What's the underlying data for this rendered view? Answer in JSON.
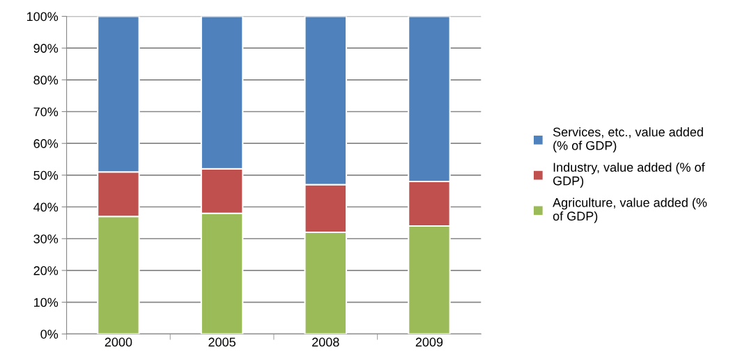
{
  "chart_data": {
    "type": "bar",
    "stacked": true,
    "categories": [
      "2000",
      "2005",
      "2008",
      "2009"
    ],
    "series": [
      {
        "name": "Agriculture, value added (% of GDP)",
        "color": "#9bbb59",
        "values": [
          37,
          38,
          32,
          34
        ]
      },
      {
        "name": "Industry, value added (% of GDP)",
        "color": "#c0504d",
        "values": [
          14,
          14,
          15,
          14
        ]
      },
      {
        "name": "Services, etc., value added (% of GDP)",
        "color": "#4f81bd",
        "values": [
          49,
          48,
          53,
          52
        ]
      }
    ],
    "ylim": [
      0,
      100
    ],
    "yticks": [
      {
        "value": 0,
        "label": "0%"
      },
      {
        "value": 10,
        "label": "10%"
      },
      {
        "value": 20,
        "label": "20%"
      },
      {
        "value": 30,
        "label": "30%"
      },
      {
        "value": 40,
        "label": "40%"
      },
      {
        "value": 50,
        "label": "50%"
      },
      {
        "value": 60,
        "label": "60%"
      },
      {
        "value": 70,
        "label": "70%"
      },
      {
        "value": 80,
        "label": "80%"
      },
      {
        "value": 90,
        "label": "90%"
      },
      {
        "value": 100,
        "label": "100%"
      }
    ],
    "grid": "y",
    "legend": "right"
  }
}
